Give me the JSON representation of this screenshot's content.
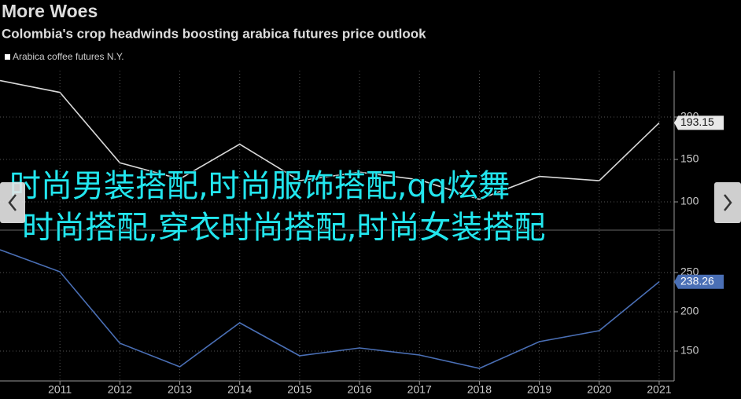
{
  "header": {
    "title": "More Woes",
    "subtitle": "Colombia's crop headwinds boosting arabica futures price outlook"
  },
  "chart_data": [
    {
      "type": "line",
      "legend": "top-left",
      "x": [
        2010,
        2011,
        2012,
        2013,
        2014,
        2015,
        2016,
        2017,
        2018,
        2019,
        2020,
        2021
      ],
      "series": [
        {
          "name": "Arabica coffee futures N.Y.",
          "color": "#d9d9d9",
          "values": [
            243,
            229,
            146,
            127,
            168,
            125,
            135,
            126,
            103,
            130,
            125,
            193.15
          ]
        }
      ],
      "xlim": [
        2010,
        2021.25
      ],
      "ylim": [
        66.7,
        254.6
      ],
      "yticks": [
        100,
        150,
        200
      ],
      "grid": true
    },
    {
      "type": "line",
      "x": [
        2010,
        2011,
        2012,
        2013,
        2014,
        2015,
        2016,
        2017,
        2018,
        2019,
        2020,
        2021
      ],
      "series": [
        {
          "color": "#4a6fb5",
          "values": [
            279,
            251,
            160,
            130,
            186,
            144,
            154,
            145,
            128,
            162,
            176,
            238.26
          ]
        }
      ],
      "xlim": [
        2010,
        2021.25
      ],
      "ylim": [
        112,
        304
      ],
      "yticks": [
        150,
        200,
        250
      ],
      "xticks": [
        2011,
        2012,
        2013,
        2014,
        2015,
        2016,
        2017,
        2018,
        2019,
        2020,
        2021
      ],
      "grid": true
    }
  ],
  "overlay": {
    "lines": [
      "时尚男装搭配,时尚服饰搭配,qq炫舞",
      "时尚搭配,穿衣时尚搭配,时尚女装搭配"
    ]
  }
}
